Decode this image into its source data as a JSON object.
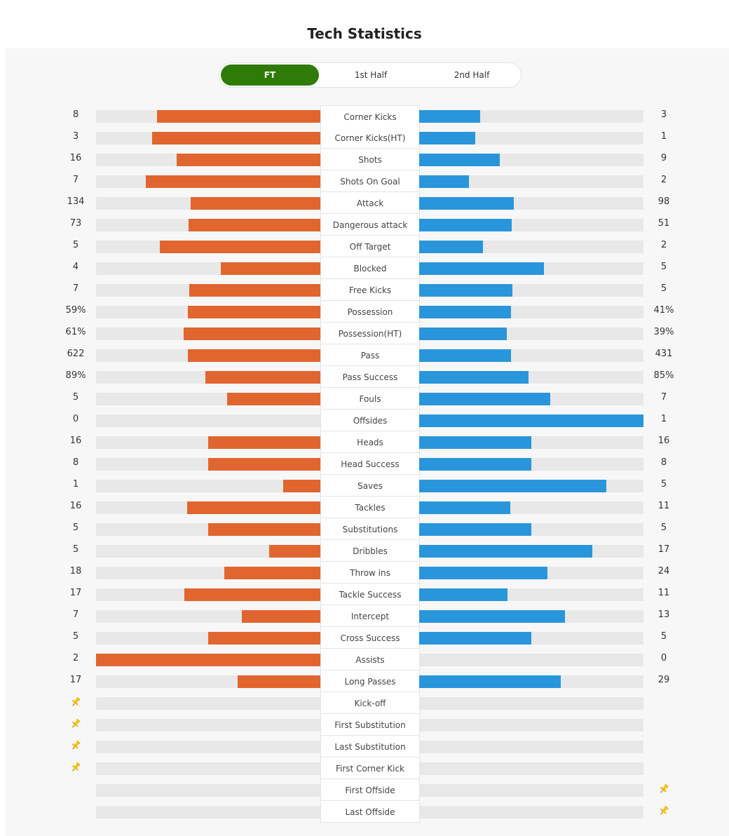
{
  "title": "Tech Statistics",
  "tabs": {
    "items": [
      "FT",
      "1st Half",
      "2nd Half"
    ],
    "active": 0
  },
  "stats": [
    {
      "label": "Corner Kicks",
      "home": 8,
      "away": 3
    },
    {
      "label": "Corner Kicks(HT)",
      "home": 3,
      "away": 1
    },
    {
      "label": "Shots",
      "home": 16,
      "away": 9
    },
    {
      "label": "Shots On Goal",
      "home": 7,
      "away": 2
    },
    {
      "label": "Attack",
      "home": 134,
      "away": 98
    },
    {
      "label": "Dangerous attack",
      "home": 73,
      "away": 51
    },
    {
      "label": "Off Target",
      "home": 5,
      "away": 2
    },
    {
      "label": "Blocked",
      "home": 4,
      "away": 5
    },
    {
      "label": "Free Kicks",
      "home": 7,
      "away": 5
    },
    {
      "label": "Possession",
      "home": 59,
      "away": 41,
      "home_label": "59%",
      "away_label": "41%"
    },
    {
      "label": "Possession(HT)",
      "home": 61,
      "away": 39,
      "home_label": "61%",
      "away_label": "39%"
    },
    {
      "label": "Pass",
      "home": 622,
      "away": 431
    },
    {
      "label": "Pass Success",
      "home": 89,
      "away": 85,
      "home_label": "89%",
      "away_label": "85%"
    },
    {
      "label": "Fouls",
      "home": 5,
      "away": 7
    },
    {
      "label": "Offsides",
      "home": 0,
      "away": 1
    },
    {
      "label": "Heads",
      "home": 16,
      "away": 16
    },
    {
      "label": "Head Success",
      "home": 8,
      "away": 8
    },
    {
      "label": "Saves",
      "home": 1,
      "away": 5
    },
    {
      "label": "Tackles",
      "home": 16,
      "away": 11
    },
    {
      "label": "Substitutions",
      "home": 5,
      "away": 5
    },
    {
      "label": "Dribbles",
      "home": 5,
      "away": 17
    },
    {
      "label": "Throw ins",
      "home": 18,
      "away": 24
    },
    {
      "label": "Tackle Success",
      "home": 17,
      "away": 11
    },
    {
      "label": "Intercept",
      "home": 7,
      "away": 13
    },
    {
      "label": "Cross Success",
      "home": 5,
      "away": 5
    },
    {
      "label": "Assists",
      "home": 2,
      "away": 0
    },
    {
      "label": "Long Passes",
      "home": 17,
      "away": 29
    }
  ],
  "events": [
    {
      "label": "Kick-off",
      "side": "home"
    },
    {
      "label": "First Substitution",
      "side": "home"
    },
    {
      "label": "Last Substitution",
      "side": "home"
    },
    {
      "label": "First Corner Kick",
      "side": "home"
    },
    {
      "label": "First Offside",
      "side": "away"
    },
    {
      "label": "Last Offside",
      "side": "away"
    }
  ],
  "colors": {
    "home": "#e0652f",
    "away": "#2996db",
    "active_tab": "#2e7b08"
  }
}
